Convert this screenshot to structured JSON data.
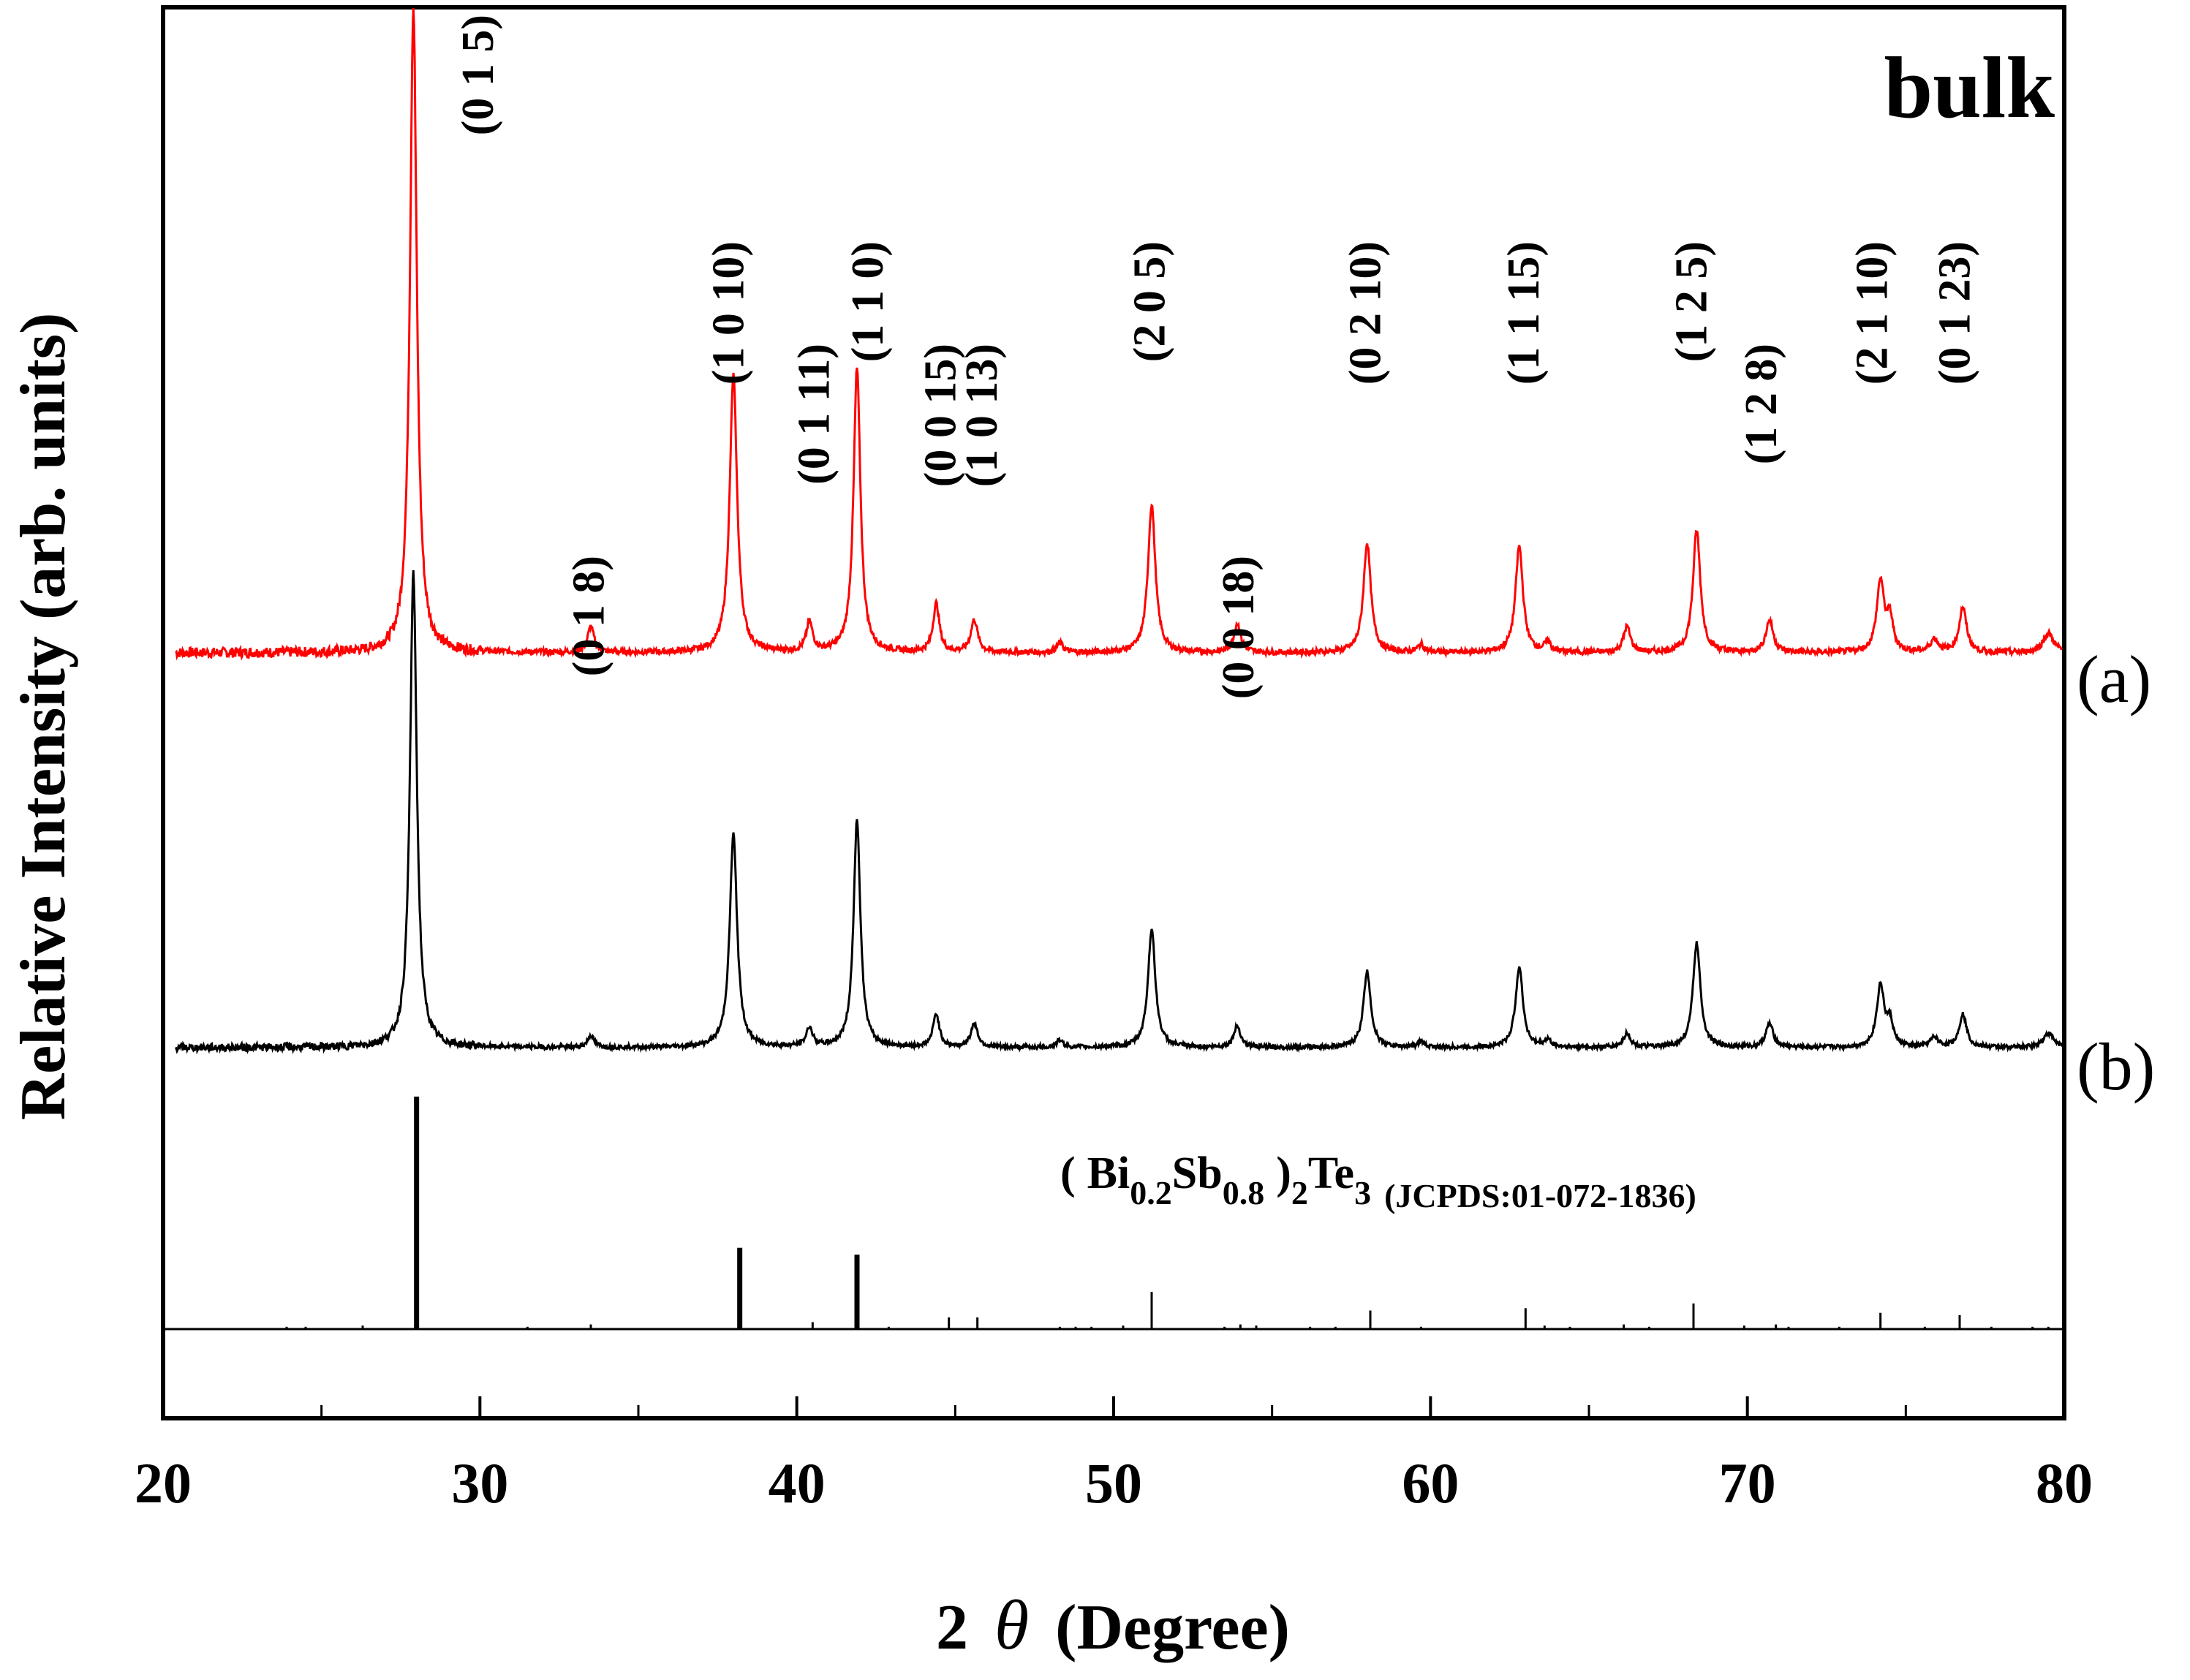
{
  "chart_data": {
    "type": "line",
    "xlabel_prefix": "2",
    "xlabel_symbol": "θ",
    "xlabel_suffix": "(Degree)",
    "ylabel": "Relative Intensity (arb. units)",
    "xlim": [
      20,
      80
    ],
    "xticks": [
      "20",
      "30",
      "40",
      "50",
      "60",
      "70",
      "80"
    ],
    "yticks_shown": false,
    "annotation": "bulk",
    "series": [
      {
        "name": "(a)",
        "color": "#ff0000",
        "baseline": 0,
        "peaks": [
          {
            "x": 27.9,
            "h": 100,
            "w": 0.13
          },
          {
            "x": 33.5,
            "h": 4,
            "w": 0.12
          },
          {
            "x": 38.0,
            "h": 43,
            "w": 0.14
          },
          {
            "x": 40.4,
            "h": 4.5,
            "w": 0.12
          },
          {
            "x": 41.9,
            "h": 44,
            "w": 0.13
          },
          {
            "x": 44.4,
            "h": 7.5,
            "w": 0.12
          },
          {
            "x": 45.6,
            "h": 5,
            "w": 0.13
          },
          {
            "x": 48.3,
            "h": 1.5,
            "w": 0.12
          },
          {
            "x": 51.2,
            "h": 23,
            "w": 0.14
          },
          {
            "x": 53.9,
            "h": 4.5,
            "w": 0.13
          },
          {
            "x": 58.0,
            "h": 17,
            "w": 0.14
          },
          {
            "x": 59.7,
            "h": 1.2,
            "w": 0.12
          },
          {
            "x": 62.8,
            "h": 16.5,
            "w": 0.14
          },
          {
            "x": 63.7,
            "h": 1.5,
            "w": 0.12
          },
          {
            "x": 66.2,
            "h": 4,
            "w": 0.13
          },
          {
            "x": 68.4,
            "h": 19,
            "w": 0.14
          },
          {
            "x": 70.7,
            "h": 5,
            "w": 0.14
          },
          {
            "x": 74.2,
            "h": 11,
            "w": 0.14
          },
          {
            "x": 74.5,
            "h": 5,
            "w": 0.12
          },
          {
            "x": 75.9,
            "h": 2,
            "w": 0.15
          },
          {
            "x": 76.8,
            "h": 7,
            "w": 0.14
          },
          {
            "x": 79.5,
            "h": 3,
            "w": 0.2
          }
        ]
      },
      {
        "name": "(b)",
        "color": "#000000",
        "baseline": 0,
        "peaks": [
          {
            "x": 27.9,
            "h": 100,
            "w": 0.13
          },
          {
            "x": 33.5,
            "h": 2.5,
            "w": 0.12
          },
          {
            "x": 38.0,
            "h": 45,
            "w": 0.14
          },
          {
            "x": 40.4,
            "h": 4,
            "w": 0.12
          },
          {
            "x": 41.9,
            "h": 48,
            "w": 0.13
          },
          {
            "x": 44.4,
            "h": 7,
            "w": 0.12
          },
          {
            "x": 45.6,
            "h": 5,
            "w": 0.13
          },
          {
            "x": 48.3,
            "h": 1.5,
            "w": 0.12
          },
          {
            "x": 51.2,
            "h": 25,
            "w": 0.14
          },
          {
            "x": 53.9,
            "h": 4.5,
            "w": 0.13
          },
          {
            "x": 58.0,
            "h": 16,
            "w": 0.14
          },
          {
            "x": 59.7,
            "h": 1.2,
            "w": 0.12
          },
          {
            "x": 62.8,
            "h": 17,
            "w": 0.14
          },
          {
            "x": 63.7,
            "h": 1.5,
            "w": 0.12
          },
          {
            "x": 66.2,
            "h": 3,
            "w": 0.13
          },
          {
            "x": 68.4,
            "h": 22,
            "w": 0.14
          },
          {
            "x": 70.7,
            "h": 5,
            "w": 0.14
          },
          {
            "x": 74.2,
            "h": 13,
            "w": 0.14
          },
          {
            "x": 74.5,
            "h": 5,
            "w": 0.12
          },
          {
            "x": 75.9,
            "h": 2,
            "w": 0.15
          },
          {
            "x": 76.8,
            "h": 7,
            "w": 0.14
          },
          {
            "x": 79.5,
            "h": 3,
            "w": 0.2
          }
        ]
      }
    ],
    "reference": {
      "formula_open": "(",
      "el1": "Bi",
      "sub1": "0.2",
      "el2": "Sb",
      "sub2": "0.8",
      "formula_close": ")",
      "sub3": "2",
      "el3": "Te",
      "sub4": "3",
      "card": "(JCPDS:01-072-1836)",
      "sticks": [
        {
          "x": 23.9,
          "h": 1
        },
        {
          "x": 24.5,
          "h": 1
        },
        {
          "x": 26.3,
          "h": 1.5
        },
        {
          "x": 28.0,
          "h": 100
        },
        {
          "x": 31.5,
          "h": 1
        },
        {
          "x": 33.5,
          "h": 2
        },
        {
          "x": 38.2,
          "h": 35
        },
        {
          "x": 40.5,
          "h": 3
        },
        {
          "x": 41.9,
          "h": 32
        },
        {
          "x": 42.9,
          "h": 1
        },
        {
          "x": 44.8,
          "h": 5
        },
        {
          "x": 45.7,
          "h": 5
        },
        {
          "x": 48.3,
          "h": 1
        },
        {
          "x": 48.8,
          "h": 1
        },
        {
          "x": 49.3,
          "h": 1
        },
        {
          "x": 50.3,
          "h": 1.5
        },
        {
          "x": 51.2,
          "h": 16
        },
        {
          "x": 53.5,
          "h": 1
        },
        {
          "x": 54.0,
          "h": 2
        },
        {
          "x": 54.5,
          "h": 1.5
        },
        {
          "x": 56.2,
          "h": 1
        },
        {
          "x": 57.0,
          "h": 1
        },
        {
          "x": 58.1,
          "h": 8
        },
        {
          "x": 59.7,
          "h": 1
        },
        {
          "x": 63.0,
          "h": 9
        },
        {
          "x": 63.6,
          "h": 1.5
        },
        {
          "x": 64.4,
          "h": 1
        },
        {
          "x": 66.1,
          "h": 2
        },
        {
          "x": 66.9,
          "h": 1
        },
        {
          "x": 68.3,
          "h": 11
        },
        {
          "x": 69.9,
          "h": 1.5
        },
        {
          "x": 70.9,
          "h": 2
        },
        {
          "x": 71.3,
          "h": 1
        },
        {
          "x": 72.9,
          "h": 1
        },
        {
          "x": 74.2,
          "h": 7
        },
        {
          "x": 75.6,
          "h": 1
        },
        {
          "x": 76.7,
          "h": 6
        },
        {
          "x": 77.7,
          "h": 1
        },
        {
          "x": 79.0,
          "h": 1
        },
        {
          "x": 79.5,
          "h": 1
        }
      ]
    },
    "peak_labels": [
      {
        "text": "(0 1 5)",
        "x": 29.9,
        "row": 0
      },
      {
        "text": "(0 1 8)",
        "x": 33.4,
        "row": 3
      },
      {
        "text": "(1 0 10)",
        "x": 37.8,
        "row": 1
      },
      {
        "text": "(0 1 11)",
        "x": 40.5,
        "row": 2
      },
      {
        "text": "(1 1 0)",
        "x": 42.2,
        "row": 1
      },
      {
        "text": "(0 0 15)",
        "x": 44.5,
        "row": 2
      },
      {
        "text": "(1 0 13)",
        "x": 45.8,
        "row": 2
      },
      {
        "text": "(2 0 5)",
        "x": 51.1,
        "row": 1
      },
      {
        "text": "(0 0 18)",
        "x": 53.9,
        "row": 3
      },
      {
        "text": "(0 2 10)",
        "x": 57.9,
        "row": 1
      },
      {
        "text": "(1 1 15)",
        "x": 62.9,
        "row": 1
      },
      {
        "text": "(1 2 5)",
        "x": 68.2,
        "row": 1
      },
      {
        "text": "(1 2 8)",
        "x": 70.4,
        "row": 2
      },
      {
        "text": "(2 1 10)",
        "x": 73.9,
        "row": 1
      },
      {
        "text": "(0 1 23)",
        "x": 76.5,
        "row": 1
      }
    ]
  }
}
